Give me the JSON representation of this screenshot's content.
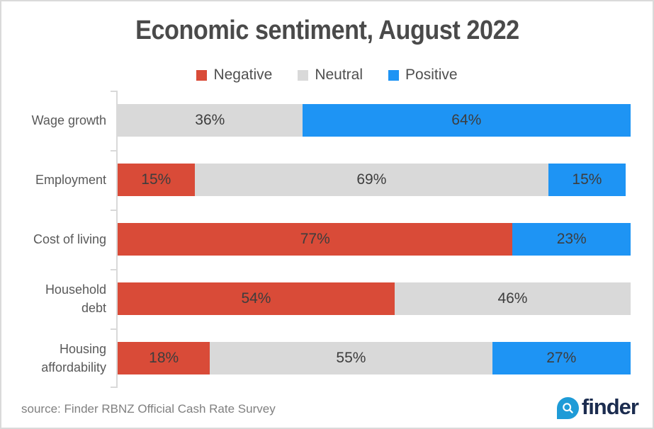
{
  "title": "Economic sentiment, August 2022",
  "legend": [
    {
      "label": "Negative",
      "color": "#d94b38"
    },
    {
      "label": "Neutral",
      "color": "#d9d9d9"
    },
    {
      "label": "Positive",
      "color": "#1e94f4"
    }
  ],
  "chart_data": {
    "type": "bar",
    "orientation": "horizontal",
    "stacked": true,
    "title": "Economic sentiment, August 2022",
    "categories": [
      "Wage growth",
      "Employment",
      "Cost of living",
      "Household debt",
      "Housing affordability"
    ],
    "series": [
      {
        "name": "Negative",
        "color": "#d94b38",
        "values": [
          0,
          15,
          77,
          54,
          18
        ]
      },
      {
        "name": "Neutral",
        "color": "#d9d9d9",
        "values": [
          36,
          69,
          0,
          46,
          55
        ]
      },
      {
        "name": "Positive",
        "color": "#1e94f4",
        "values": [
          64,
          15,
          23,
          0,
          27
        ]
      }
    ],
    "value_suffix": "%",
    "xlim": [
      0,
      100
    ],
    "grid": false,
    "legend_position": "top",
    "data_labels": true
  },
  "source": "source: Finder RBNZ Official Cash Rate Survey",
  "logo": {
    "brand": "finder",
    "icon": "magnifier-icon"
  }
}
